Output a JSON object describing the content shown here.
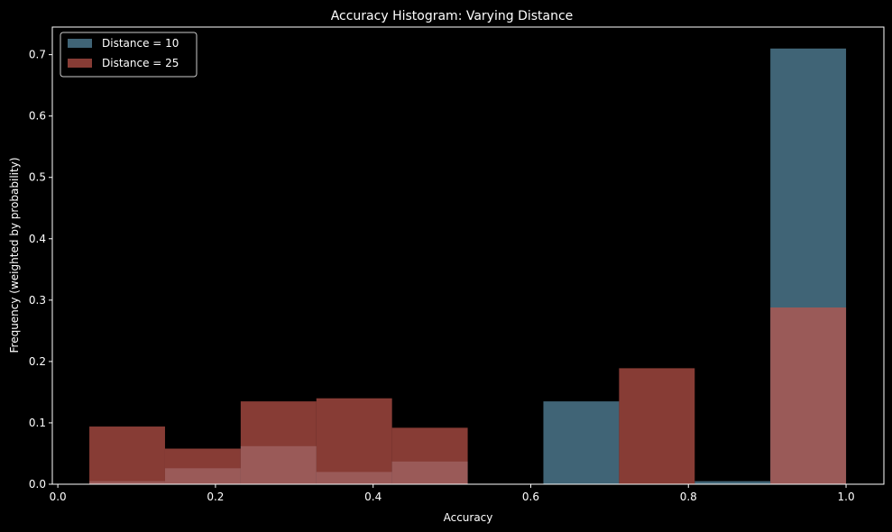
{
  "chart_data": {
    "type": "bar",
    "title": "Accuracy Histogram: Varying Distance",
    "xlabel": "Accuracy",
    "ylabel": "Frequency (weighted by probability)",
    "xlim": [
      -0.007,
      1.048
    ],
    "ylim": [
      0,
      0.745
    ],
    "xticks": [
      0.0,
      0.2,
      0.4,
      0.6,
      0.8,
      1.0
    ],
    "xtick_labels": [
      "0.0",
      "0.2",
      "0.4",
      "0.6",
      "0.8",
      "1.0"
    ],
    "yticks": [
      0.0,
      0.1,
      0.2,
      0.3,
      0.4,
      0.5,
      0.6,
      0.7
    ],
    "ytick_labels": [
      "0.0",
      "0.1",
      "0.2",
      "0.3",
      "0.4",
      "0.5",
      "0.6",
      "0.7"
    ],
    "bin_edges": [
      0.04,
      0.136,
      0.232,
      0.328,
      0.424,
      0.52,
      0.616,
      0.712,
      0.808,
      0.904,
      1.0
    ],
    "series": [
      {
        "name": "Distance = 10",
        "color": "#5b8fa8",
        "values": [
          0.005,
          0.026,
          0.062,
          0.02,
          0.037,
          0.0,
          0.135,
          0.0,
          0.005,
          0.71
        ]
      },
      {
        "name": "Distance = 25",
        "color": "#c0564b",
        "values": [
          0.094,
          0.058,
          0.135,
          0.14,
          0.092,
          0.0,
          0.0,
          0.189,
          0.0,
          0.288
        ]
      }
    ],
    "legend_position": "top-left",
    "grid": false,
    "background": "#000000",
    "foreground": "#ffffff"
  }
}
